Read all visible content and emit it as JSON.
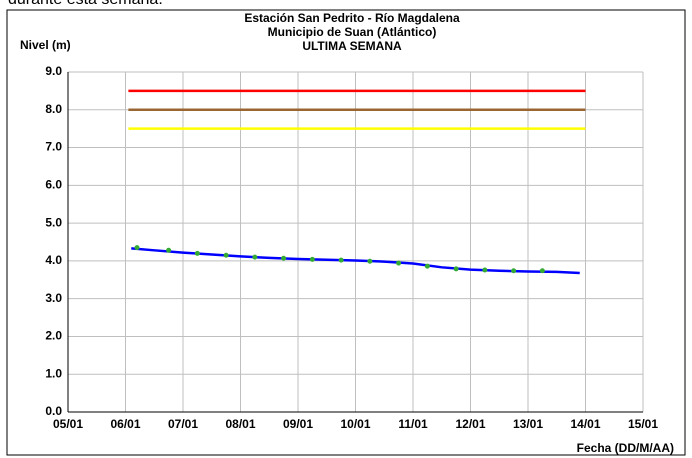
{
  "caption_fragment": "durante esta semana.",
  "chart_data": {
    "type": "line",
    "title": "Estación San Pedrito - Río Magdalena",
    "subtitle": "Municipio de Suan (Atlántico)",
    "period": "ULTIMA SEMANA",
    "y_label": "Nivel (m)",
    "x_label": "Fecha (DD/M/AA)",
    "xlim": [
      5,
      15
    ],
    "xticks": [
      {
        "value": 5,
        "label": "05/01"
      },
      {
        "value": 6,
        "label": "06/01"
      },
      {
        "value": 7,
        "label": "07/01"
      },
      {
        "value": 8,
        "label": "08/01"
      },
      {
        "value": 9,
        "label": "09/01"
      },
      {
        "value": 10,
        "label": "10/01"
      },
      {
        "value": 11,
        "label": "11/01"
      },
      {
        "value": 12,
        "label": "12/01"
      },
      {
        "value": 13,
        "label": "13/01"
      },
      {
        "value": 14,
        "label": "14/01"
      },
      {
        "value": 15,
        "label": "15/01"
      }
    ],
    "ylim": [
      0,
      9
    ],
    "yticks": [
      {
        "value": 0,
        "label": "0.0"
      },
      {
        "value": 1,
        "label": "1.0"
      },
      {
        "value": 2,
        "label": "2.0"
      },
      {
        "value": 3,
        "label": "3.0"
      },
      {
        "value": 4,
        "label": "4.0"
      },
      {
        "value": 5,
        "label": "5.0"
      },
      {
        "value": 6,
        "label": "6.0"
      },
      {
        "value": 7,
        "label": "7.0"
      },
      {
        "value": 8,
        "label": "8.0"
      },
      {
        "value": 9,
        "label": "9.0"
      }
    ],
    "grid": true,
    "series": [
      {
        "color": "#ff0000",
        "style": "line",
        "x": [
          6.05,
          14
        ],
        "values": [
          8.5,
          8.5
        ]
      },
      {
        "color": "#996633",
        "style": "line",
        "x": [
          6.05,
          14
        ],
        "values": [
          8.0,
          8.0
        ]
      },
      {
        "color": "#ffff00",
        "style": "line",
        "x": [
          6.05,
          14
        ],
        "values": [
          7.5,
          7.5
        ]
      },
      {
        "color": "#0000ff",
        "style": "line",
        "x": [
          6.1,
          6.5,
          7,
          7.5,
          8,
          8.5,
          9,
          9.5,
          10,
          10.5,
          11,
          11.5,
          12,
          12.5,
          13,
          13.5,
          13.9
        ],
        "values": [
          4.33,
          4.28,
          4.22,
          4.17,
          4.12,
          4.08,
          4.05,
          4.03,
          4.01,
          3.98,
          3.93,
          3.83,
          3.77,
          3.74,
          3.72,
          3.71,
          3.68
        ]
      },
      {
        "color": "#33aa33",
        "style": "markers",
        "x": [
          6.2,
          6.75,
          7.25,
          7.75,
          8.25,
          8.75,
          9.25,
          9.75,
          10.25,
          10.75,
          11.25,
          11.75,
          12.25,
          12.75,
          13.25
        ],
        "values": [
          4.35,
          4.28,
          4.2,
          4.15,
          4.1,
          4.07,
          4.04,
          4.02,
          3.99,
          3.94,
          3.86,
          3.79,
          3.76,
          3.74,
          3.74
        ]
      }
    ]
  }
}
